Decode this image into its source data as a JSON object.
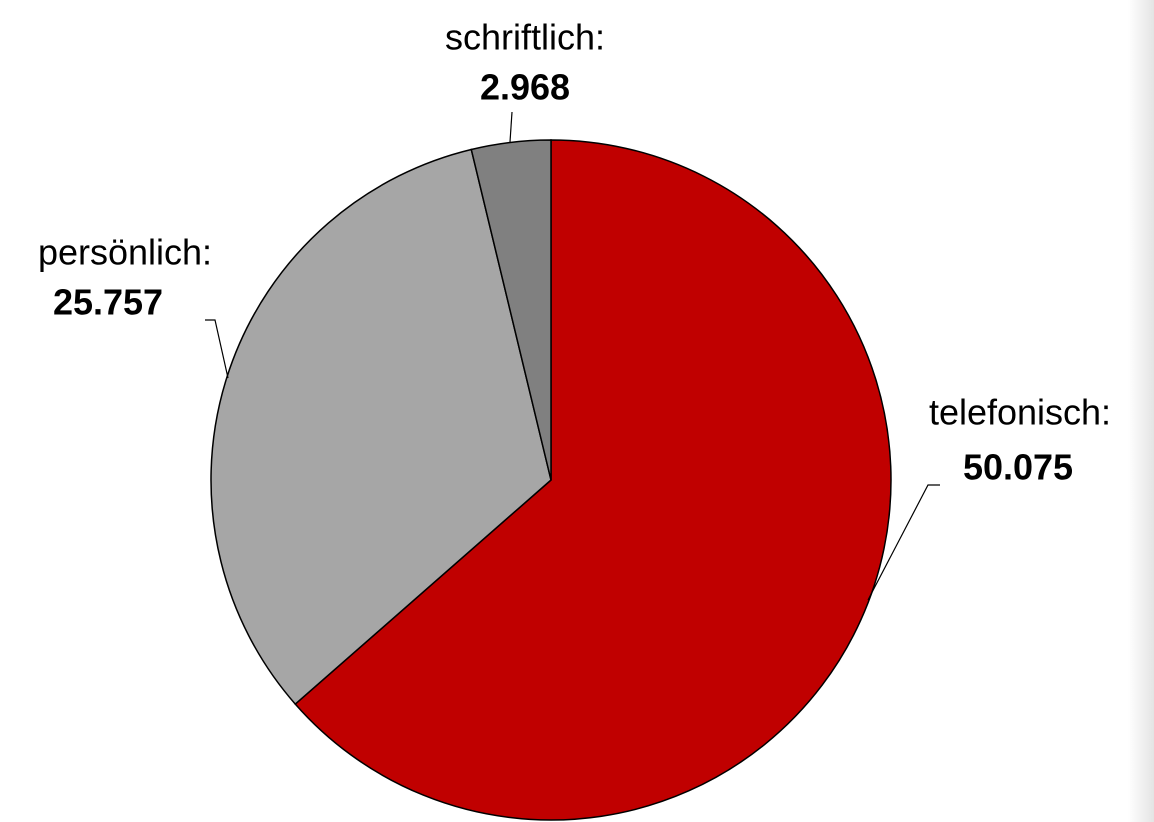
{
  "chart_data": {
    "type": "pie",
    "categories": [
      "telefonisch:",
      "persönlich:",
      "schriftlich:"
    ],
    "values": [
      50075,
      25757,
      2968
    ],
    "value_labels": [
      "50.075",
      "25.757",
      "2.968"
    ],
    "colors": [
      "#c00000",
      "#a6a6a6",
      "#808080"
    ]
  }
}
